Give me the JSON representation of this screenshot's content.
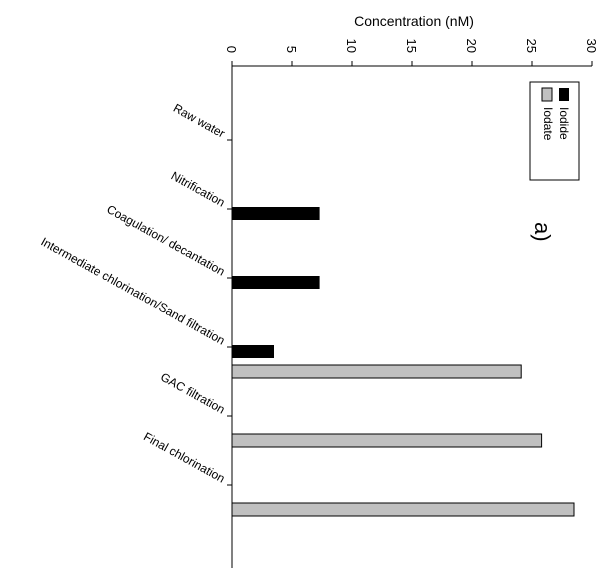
{
  "chart_data": {
    "type": "bar",
    "orientation": "horizontal",
    "title": "",
    "xlabel": "Concentration (nM)",
    "ylabel": "",
    "xlim": [
      0,
      30
    ],
    "x_ticks": [
      "0",
      "5",
      "10",
      "15",
      "20",
      "25",
      "30"
    ],
    "categories": [
      "Raw water",
      "Nitrification",
      "Coagulation/ decantation",
      "Intermediate chlorination/Sand filtration",
      "GAC filtration",
      "Final chlorination"
    ],
    "series": [
      {
        "name": "Iodide",
        "color": "#000000",
        "values": [
          0,
          7.3,
          7.3,
          3.5,
          0,
          0
        ]
      },
      {
        "name": "Iodate",
        "color": "#c0c0c0",
        "values": [
          0,
          0,
          0,
          24.1,
          25.8,
          28.5
        ]
      }
    ],
    "panel_label": "a)",
    "legend_position": "top-right",
    "grid": false
  }
}
